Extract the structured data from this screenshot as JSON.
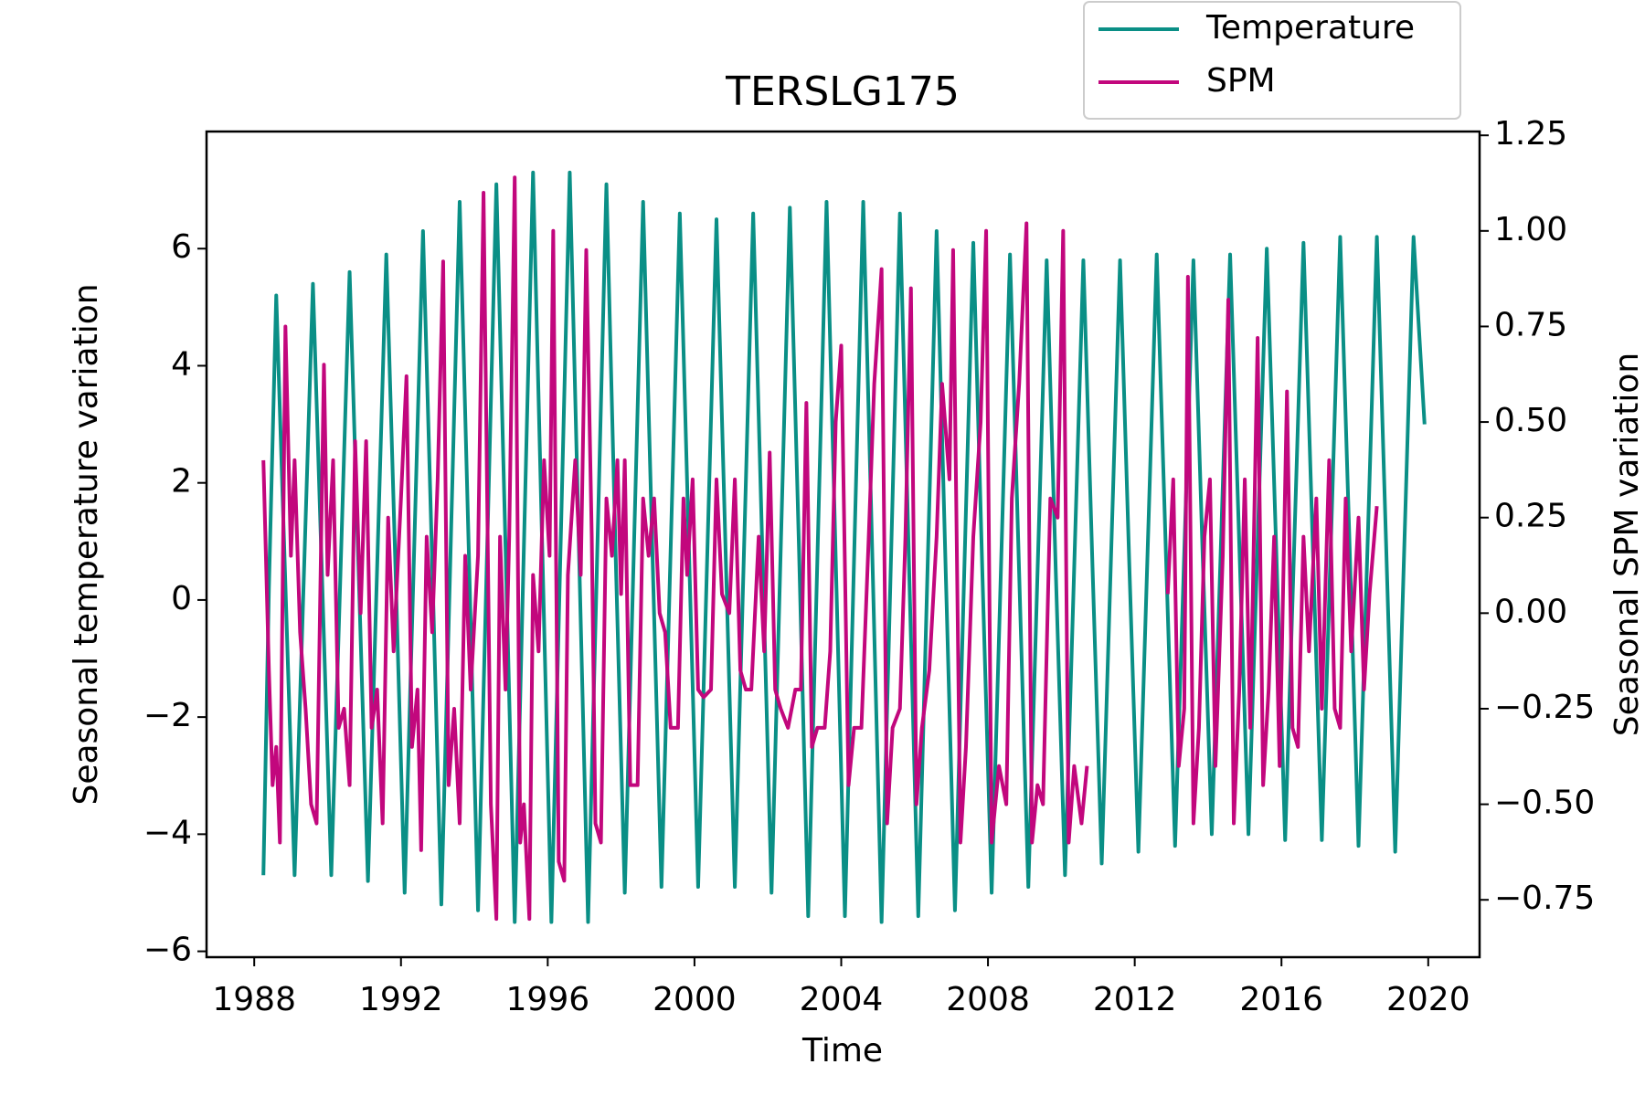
{
  "chart_data": {
    "type": "line",
    "title": "TERSLG175",
    "xlabel": "Time",
    "ylabel": "Seasonal temperature variation",
    "y2label": "Seasonal SPM variation",
    "xlim": [
      1986.7,
      2021.4
    ],
    "xticks": [
      1988,
      1992,
      1996,
      2000,
      2004,
      2008,
      2012,
      2016,
      2020
    ],
    "ylim": [
      -6.1,
      8.0
    ],
    "yticks": [
      {
        "value": -6,
        "label": "−6"
      },
      {
        "value": -4,
        "label": "−4"
      },
      {
        "value": -2,
        "label": "−2"
      },
      0,
      2,
      4,
      6
    ],
    "y2lim": [
      -0.9,
      1.26
    ],
    "y2ticks": [
      {
        "value": -0.75,
        "label": "−0.75"
      },
      {
        "value": -0.5,
        "label": "−0.50"
      },
      {
        "value": -0.25,
        "label": "−0.25"
      },
      {
        "value": 0,
        "label": "0.00"
      },
      0.25,
      {
        "value": 0.5,
        "label": "0.50"
      },
      0.75,
      {
        "value": 1,
        "label": "1.00"
      },
      1.25
    ],
    "grid": false,
    "legend": "upper right",
    "series": [
      {
        "name": "Temperature",
        "color": "#0a8f86",
        "x": [
          1988.25,
          1988.4,
          1988.6,
          1988.85,
          1989.1,
          1989.35,
          1989.6,
          1989.85,
          1990.1,
          1990.35,
          1990.6,
          1990.85,
          1991.1,
          1991.35,
          1991.6,
          1991.85,
          1992.1,
          1992.35,
          1992.6,
          1992.85,
          1993.1,
          1993.35,
          1993.6,
          1993.85,
          1994.1,
          1994.35,
          1994.6,
          1994.85,
          1995.1,
          1995.35,
          1995.6,
          1995.85,
          1996.1,
          1996.35,
          1996.6,
          1996.85,
          1997.1,
          1997.35,
          1997.6,
          1997.85,
          1998.1,
          1998.35,
          1998.6,
          1998.85,
          1999.1,
          1999.35,
          1999.6,
          1999.85,
          2000.1,
          2000.35,
          2000.6,
          2000.85,
          2001.1,
          2001.35,
          2001.6,
          2001.85,
          2002.1,
          2002.35,
          2002.6,
          2002.85,
          2003.1,
          2003.35,
          2003.6,
          2003.85,
          2004.1,
          2004.35,
          2004.6,
          2004.85,
          2005.1,
          2005.35,
          2005.6,
          2005.85,
          2006.1,
          2006.35,
          2006.6,
          2006.85,
          2007.1,
          2007.35,
          2007.6,
          2007.85,
          2008.1,
          2008.35,
          2008.6,
          2008.85,
          2009.1,
          2009.35,
          2009.6,
          2009.85,
          2010.1,
          2010.35,
          2010.6,
          2010.85,
          2011.1,
          2011.35,
          2011.6,
          2011.85,
          2012.1,
          2012.35,
          2012.6,
          2012.85,
          2013.1,
          2013.35,
          2013.6,
          2013.85,
          2014.1,
          2014.35,
          2014.6,
          2014.85,
          2015.1,
          2015.35,
          2015.6,
          2015.85,
          2016.1,
          2016.35,
          2016.6,
          2016.85,
          2017.1,
          2017.35,
          2017.6,
          2017.85,
          2018.1,
          2018.35,
          2018.6,
          2018.85,
          2019.1,
          2019.35,
          2019.6,
          2019.9
        ],
        "values": [
          -4.7,
          0.2,
          5.2,
          0.25,
          -4.7,
          0.35,
          5.4,
          0.35,
          -4.7,
          0.45,
          5.6,
          0.4,
          -4.8,
          0.55,
          5.9,
          0.55,
          -5.0,
          0.65,
          6.3,
          0.65,
          -5.2,
          0.8,
          6.8,
          0.8,
          -5.3,
          0.9,
          7.1,
          0.9,
          -5.5,
          0.9,
          7.3,
          0.9,
          -5.5,
          0.9,
          7.3,
          0.9,
          -5.5,
          0.8,
          7.1,
          0.8,
          -5.0,
          0.9,
          6.8,
          0.9,
          -4.9,
          0.85,
          6.6,
          0.85,
          -4.9,
          0.8,
          6.5,
          0.8,
          -4.9,
          0.85,
          6.6,
          0.85,
          -5.0,
          0.85,
          6.7,
          0.85,
          -5.4,
          0.7,
          6.8,
          0.7,
          -5.4,
          0.7,
          6.8,
          0.7,
          -5.5,
          0.55,
          6.6,
          0.55,
          -5.4,
          0.45,
          6.3,
          0.45,
          -5.3,
          0.4,
          6.1,
          0.4,
          -5.0,
          0.45,
          5.9,
          0.45,
          -4.9,
          0.45,
          5.8,
          0.45,
          -4.7,
          0.55,
          5.8,
          0.55,
          -4.5,
          0.65,
          5.8,
          0.65,
          -4.3,
          0.8,
          5.9,
          0.8,
          -4.2,
          0.8,
          5.8,
          0.8,
          -4.0,
          0.95,
          5.9,
          0.95,
          -4.0,
          1.0,
          6.0,
          1.0,
          -4.1,
          1.0,
          6.1,
          1.0,
          -4.1,
          1.05,
          6.2,
          1.05,
          -4.2,
          1.0,
          6.2,
          1.0,
          -4.3,
          0.95,
          6.2,
          3.0
        ]
      },
      {
        "name": "SPM",
        "color": "#c2077d",
        "axis": "y2",
        "x": [
          1988.25,
          1988.4,
          1988.5,
          1988.6,
          1988.7,
          1988.85,
          1989.0,
          1989.1,
          1989.25,
          1989.4,
          1989.55,
          1989.7,
          1989.9,
          1990.0,
          1990.15,
          1990.3,
          1990.45,
          1990.6,
          1990.75,
          1990.9,
          1991.05,
          1991.2,
          1991.35,
          1991.5,
          1991.65,
          1991.8,
          1992.0,
          1992.15,
          1992.3,
          1992.45,
          1992.55,
          1992.7,
          1992.85,
          1993.0,
          1993.15,
          1993.3,
          1993.45,
          1993.6,
          1993.75,
          1993.9,
          1994.1,
          1994.25,
          1994.45,
          1994.6,
          1994.7,
          1994.85,
          1994.95,
          1995.1,
          1995.25,
          1995.35,
          1995.5,
          1995.6,
          1995.75,
          1995.9,
          1996.05,
          1996.15,
          1996.3,
          1996.45,
          1996.55,
          1996.75,
          1996.9,
          1997.05,
          1997.2,
          1997.3,
          1997.45,
          1997.6,
          1997.75,
          1997.9,
          1998.0,
          1998.1,
          1998.25,
          1998.45,
          1998.6,
          1998.75,
          1998.9,
          1999.05,
          1999.2,
          1999.35,
          1999.55,
          1999.7,
          1999.8,
          1999.95,
          2000.1,
          2000.25,
          2000.45,
          2000.6,
          2000.75,
          2000.95,
          2001.1,
          2001.25,
          2001.4,
          2001.55,
          2001.75,
          2001.9,
          2002.05,
          2002.2,
          2002.35,
          2002.55,
          2002.75,
          2002.9,
          2003.05,
          2003.2,
          2003.35,
          2003.55,
          2003.7,
          2003.85,
          2004.0,
          2004.2,
          2004.35,
          2004.55,
          2004.75,
          2004.9,
          2005.1,
          2005.25,
          2005.4,
          2005.6,
          2005.75,
          2005.9,
          2006.05,
          2006.2,
          2006.4,
          2006.6,
          2006.75,
          2006.95,
          2007.05,
          2007.25,
          2007.4,
          2007.6,
          2007.8,
          2007.95,
          2008.1,
          2008.3,
          2008.5,
          2008.65,
          2008.85,
          2009.05,
          2009.2,
          2009.35,
          2009.5,
          2009.7,
          2009.9,
          2010.05,
          2010.2,
          2010.35,
          2010.55,
          2010.7,
          2011.8,
          2012.9,
          2013.05,
          2013.2,
          2013.35,
          2013.45,
          2013.6,
          2013.75,
          2013.9,
          2014.05,
          2014.2,
          2014.4,
          2014.55,
          2014.7,
          2014.85,
          2015.0,
          2015.15,
          2015.35,
          2015.5,
          2015.65,
          2015.8,
          2015.95,
          2016.15,
          2016.3,
          2016.45,
          2016.6,
          2016.75,
          2016.95,
          2017.1,
          2017.3,
          2017.45,
          2017.6,
          2017.75,
          2017.9,
          2018.1,
          2018.25,
          2018.4,
          2018.6
        ],
        "values": [
          0.4,
          -0.15,
          -0.45,
          -0.35,
          -0.6,
          0.75,
          0.15,
          0.4,
          -0.05,
          -0.25,
          -0.5,
          -0.55,
          0.65,
          0.1,
          0.4,
          -0.3,
          -0.25,
          -0.45,
          0.45,
          0.0,
          0.45,
          -0.3,
          -0.2,
          -0.55,
          0.25,
          -0.1,
          0.3,
          0.62,
          -0.35,
          -0.2,
          -0.62,
          0.2,
          -0.05,
          0.35,
          0.92,
          -0.45,
          -0.25,
          -0.55,
          0.15,
          -0.2,
          0.15,
          1.1,
          -0.5,
          -0.8,
          0.2,
          -0.2,
          0.2,
          1.14,
          -0.6,
          -0.5,
          -0.8,
          0.1,
          -0.1,
          0.4,
          0.15,
          1.0,
          -0.65,
          -0.7,
          0.1,
          0.4,
          0.1,
          0.95,
          0.2,
          -0.55,
          -0.6,
          0.3,
          0.15,
          0.4,
          0.05,
          0.4,
          -0.45,
          -0.45,
          0.3,
          0.15,
          0.3,
          0.0,
          -0.05,
          -0.3,
          -0.3,
          0.3,
          0.1,
          0.35,
          -0.2,
          -0.22,
          -0.2,
          0.35,
          0.05,
          0.0,
          0.35,
          -0.15,
          -0.2,
          -0.2,
          0.2,
          -0.1,
          0.42,
          -0.2,
          -0.25,
          -0.3,
          -0.2,
          -0.2,
          0.55,
          -0.35,
          -0.3,
          -0.3,
          -0.1,
          0.5,
          0.7,
          -0.45,
          -0.3,
          -0.3,
          0.2,
          0.6,
          0.9,
          -0.55,
          -0.3,
          -0.25,
          0.2,
          0.85,
          -0.5,
          -0.3,
          -0.15,
          0.2,
          0.6,
          0.35,
          0.95,
          -0.6,
          -0.35,
          0.2,
          0.5,
          1.0,
          -0.6,
          -0.4,
          -0.5,
          0.3,
          0.6,
          1.02,
          -0.6,
          -0.45,
          -0.5,
          0.3,
          0.25,
          1.0,
          -0.6,
          -0.4,
          -0.55,
          -0.4,
          null,
          0.05,
          0.35,
          -0.4,
          -0.25,
          0.88,
          -0.55,
          -0.3,
          0.2,
          0.35,
          -0.4,
          0.15,
          0.82,
          -0.55,
          -0.2,
          0.35,
          -0.3,
          0.72,
          -0.45,
          -0.2,
          0.2,
          -0.4,
          0.58,
          -0.3,
          -0.35,
          0.2,
          -0.1,
          0.3,
          -0.25,
          0.4,
          -0.25,
          -0.3,
          0.3,
          -0.1,
          0.25,
          -0.2,
          0.05,
          0.28
        ]
      }
    ]
  }
}
